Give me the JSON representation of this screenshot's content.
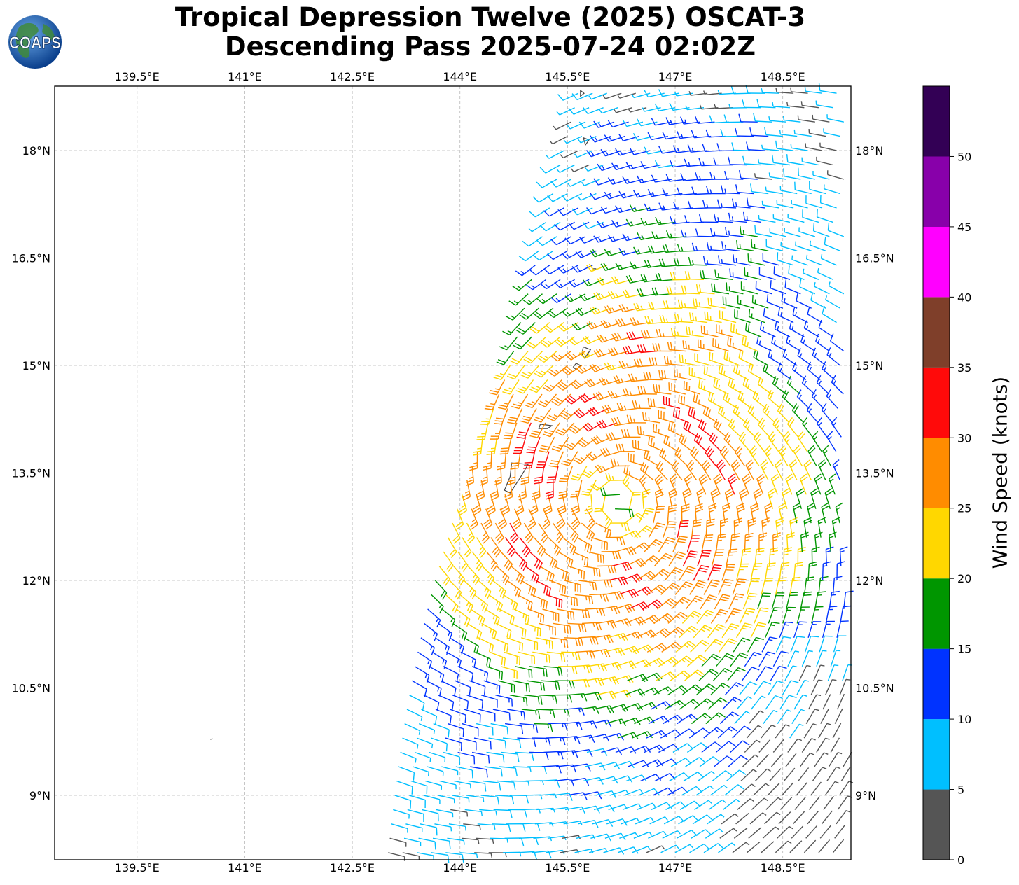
{
  "title": {
    "line1": "Tropical Depression Twelve (2025) OSCAT-3",
    "line2": "Descending Pass 2025-07-24 02:02Z"
  },
  "logo": {
    "text": "COAPS",
    "icon": "globe-icon"
  },
  "map": {
    "lon_range": [
      138.35,
      149.45
    ],
    "lat_range": [
      8.1,
      18.9
    ],
    "lon_ticks": [
      {
        "value": 139.5,
        "label": "139.5°E"
      },
      {
        "value": 141.0,
        "label": "141°E"
      },
      {
        "value": 142.5,
        "label": "142.5°E"
      },
      {
        "value": 144.0,
        "label": "144°E"
      },
      {
        "value": 145.5,
        "label": "145.5°E"
      },
      {
        "value": 147.0,
        "label": "147°E"
      },
      {
        "value": 148.5,
        "label": "148.5°E"
      }
    ],
    "lat_ticks": [
      {
        "value": 18.0,
        "label": "18°N"
      },
      {
        "value": 16.5,
        "label": "16.5°N"
      },
      {
        "value": 15.0,
        "label": "15°N"
      },
      {
        "value": 13.5,
        "label": "13.5°N"
      },
      {
        "value": 12.0,
        "label": "12°N"
      },
      {
        "value": 10.5,
        "label": "10.5°N"
      },
      {
        "value": 9.0,
        "label": "9°N"
      }
    ],
    "grid": true,
    "storm_center": [
      146.2,
      13.1
    ]
  },
  "colorbar": {
    "label": "Wind Speed (knots)",
    "ticks": [
      "0",
      "5",
      "10",
      "15",
      "20",
      "25",
      "30",
      "35",
      "40",
      "45",
      "50"
    ],
    "bins": [
      {
        "min": 0,
        "max": 5,
        "color": "#555555"
      },
      {
        "min": 5,
        "max": 10,
        "color": "#00bfff"
      },
      {
        "min": 10,
        "max": 15,
        "color": "#0033ff"
      },
      {
        "min": 15,
        "max": 20,
        "color": "#009600"
      },
      {
        "min": 20,
        "max": 25,
        "color": "#ffd700"
      },
      {
        "min": 25,
        "max": 30,
        "color": "#ff8c00"
      },
      {
        "min": 30,
        "max": 35,
        "color": "#ff0a0a"
      },
      {
        "min": 35,
        "max": 40,
        "color": "#7f3f2a"
      },
      {
        "min": 40,
        "max": 45,
        "color": "#ff00ff"
      },
      {
        "min": 45,
        "max": 50,
        "color": "#8800aa"
      },
      {
        "min": 50,
        "max": 55,
        "color": "#330055"
      }
    ]
  }
}
